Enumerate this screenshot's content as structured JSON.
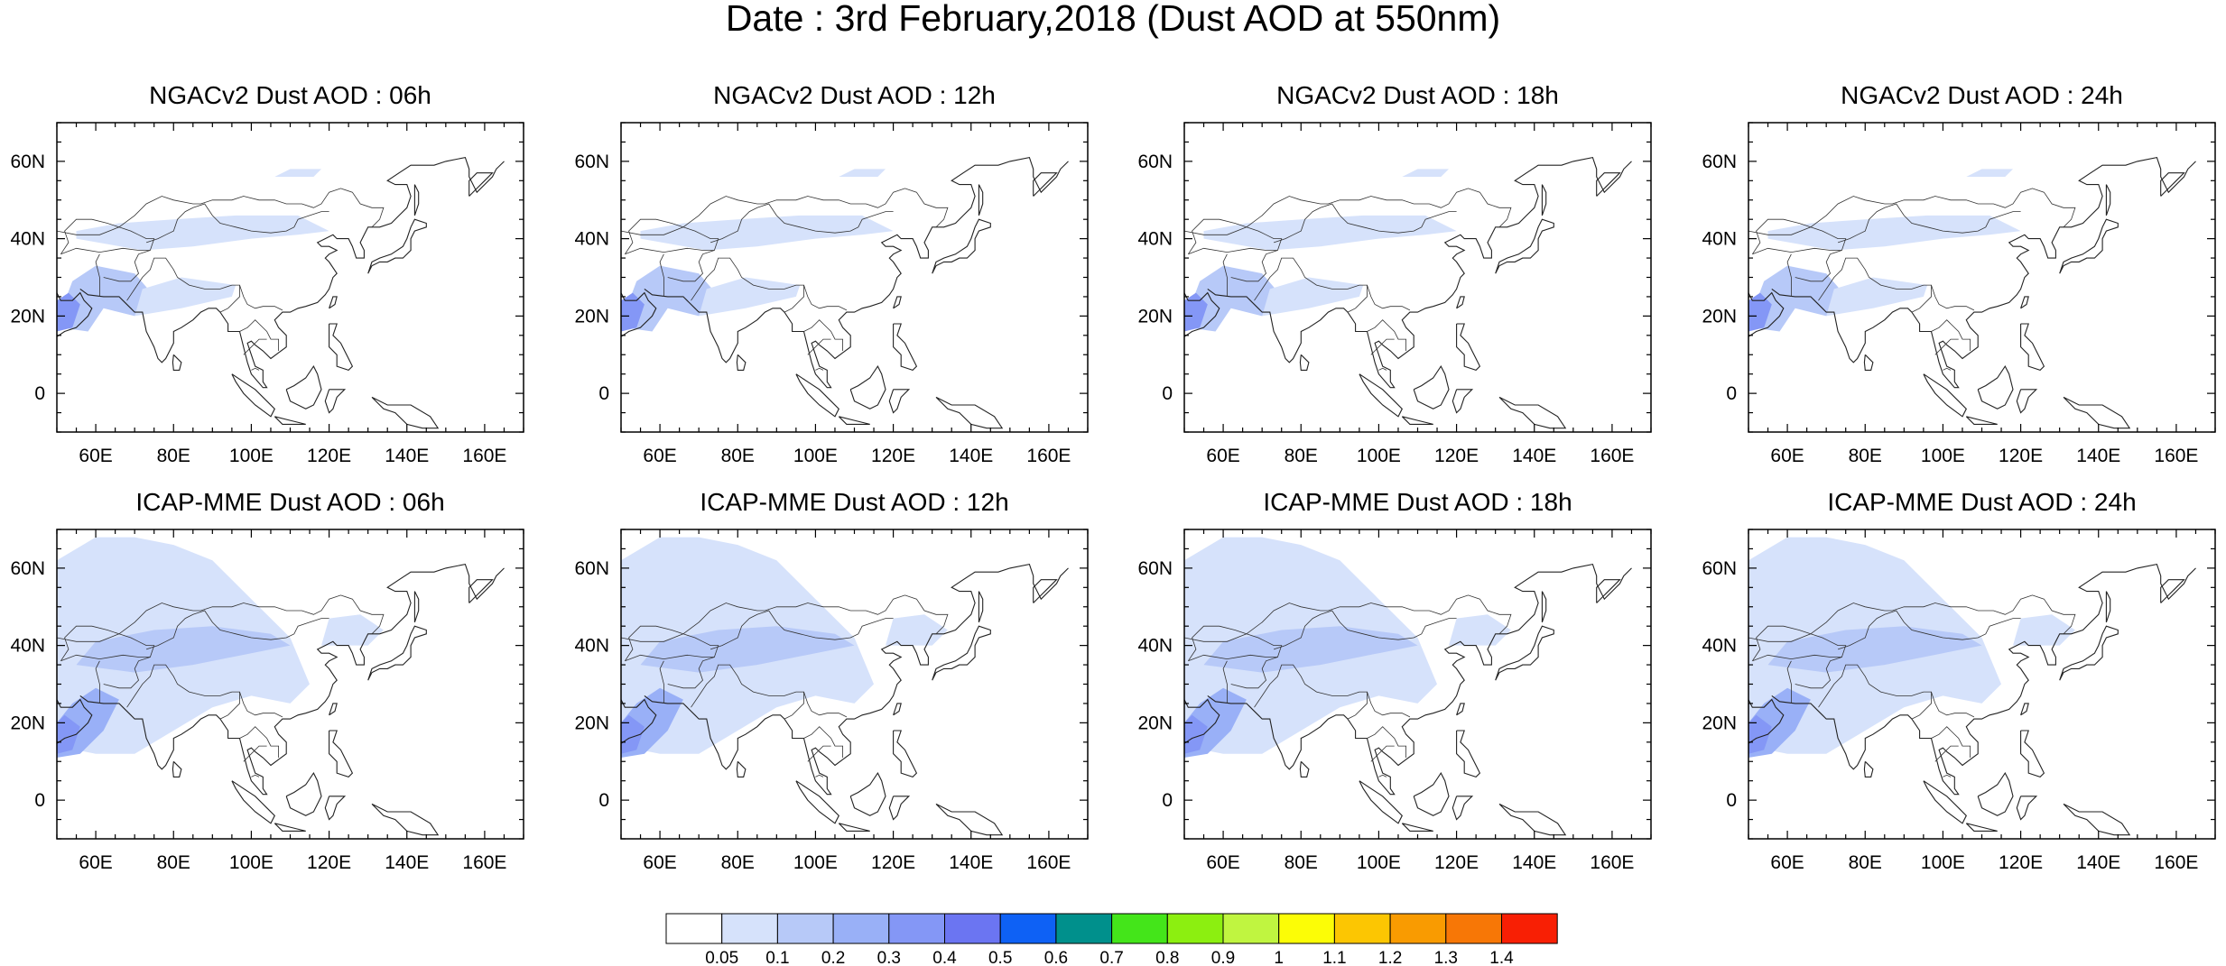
{
  "title": "Date : 3rd February,2018 (Dust AOD at 550nm)",
  "map_axes": {
    "lon_ticks": [
      "60E",
      "80E",
      "100E",
      "120E",
      "140E",
      "160E"
    ],
    "lat_ticks": [
      "60N",
      "40N",
      "20N",
      "0"
    ],
    "lon_range": [
      50,
      170
    ],
    "lat_range": [
      -10,
      70
    ]
  },
  "panels": [
    {
      "title": "NGACv2 Dust AOD : 06h",
      "model": "NGACv2",
      "hour": "06h"
    },
    {
      "title": "NGACv2 Dust AOD : 12h",
      "model": "NGACv2",
      "hour": "12h"
    },
    {
      "title": "NGACv2 Dust AOD : 18h",
      "model": "NGACv2",
      "hour": "18h"
    },
    {
      "title": "NGACv2 Dust AOD : 24h",
      "model": "NGACv2",
      "hour": "24h"
    },
    {
      "title": "ICAP-MME Dust AOD : 06h",
      "model": "ICAP-MME",
      "hour": "06h"
    },
    {
      "title": "ICAP-MME Dust AOD : 12h",
      "model": "ICAP-MME",
      "hour": "12h"
    },
    {
      "title": "ICAP-MME Dust AOD : 18h",
      "model": "ICAP-MME",
      "hour": "18h"
    },
    {
      "title": "ICAP-MME Dust AOD : 24h",
      "model": "ICAP-MME",
      "hour": "24h"
    }
  ],
  "colorbar": {
    "labels": [
      "0.05",
      "0.1",
      "0.2",
      "0.3",
      "0.4",
      "0.5",
      "0.6",
      "0.7",
      "0.8",
      "0.9",
      "1",
      "1.1",
      "1.2",
      "1.3",
      "1.4"
    ],
    "colors": [
      "#ffffff",
      "#d6e2fb",
      "#b7c9f8",
      "#99b0f7",
      "#8497f6",
      "#6b75f2",
      "#0e61f5",
      "#00908c",
      "#44e51a",
      "#8cef10",
      "#c0f540",
      "#fcfd06",
      "#fcc602",
      "#f99b01",
      "#f77706",
      "#f81f04"
    ]
  }
}
